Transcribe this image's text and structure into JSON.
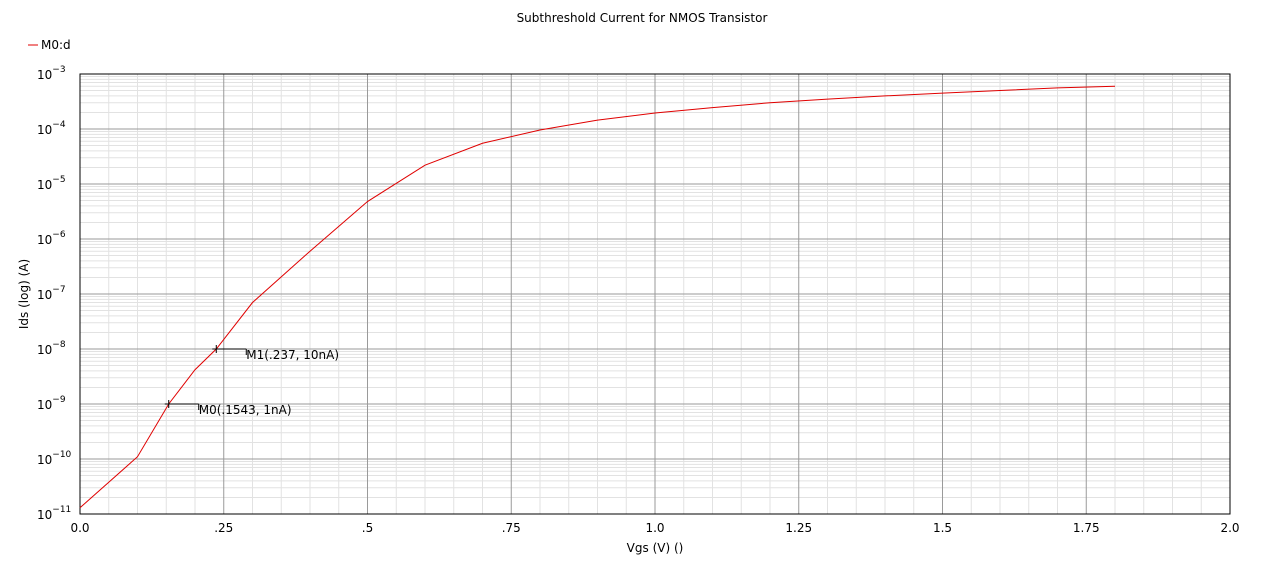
{
  "chart_data": {
    "type": "line",
    "title": "Subthreshold Current for NMOS Transistor",
    "xlabel": "Vgs (V) ()",
    "ylabel": "Ids (log) (A)",
    "xlim": [
      0.0,
      2.0
    ],
    "ylim": [
      1e-11,
      0.001
    ],
    "y_scale": "log",
    "grid": true,
    "legend_placement": "top-left",
    "x_ticks": [
      {
        "value": 0.0,
        "label": "0.0"
      },
      {
        "value": 0.25,
        "label": ".25"
      },
      {
        "value": 0.5,
        "label": ".5"
      },
      {
        "value": 0.75,
        "label": ".75"
      },
      {
        "value": 1.0,
        "label": "1.0"
      },
      {
        "value": 1.25,
        "label": "1.25"
      },
      {
        "value": 1.5,
        "label": "1.5"
      },
      {
        "value": 1.75,
        "label": "1.75"
      },
      {
        "value": 2.0,
        "label": "2.0"
      }
    ],
    "y_ticks": [
      {
        "value": 1e-11,
        "base": "10",
        "exp": "−11"
      },
      {
        "value": 1e-10,
        "base": "10",
        "exp": "−10"
      },
      {
        "value": 1e-09,
        "base": "10",
        "exp": "−9"
      },
      {
        "value": 1e-08,
        "base": "10",
        "exp": "−8"
      },
      {
        "value": 1e-07,
        "base": "10",
        "exp": "−7"
      },
      {
        "value": 1e-06,
        "base": "10",
        "exp": "−6"
      },
      {
        "value": 1e-05,
        "base": "10",
        "exp": "−5"
      },
      {
        "value": 0.0001,
        "base": "10",
        "exp": "−4"
      },
      {
        "value": 0.001,
        "base": "10",
        "exp": "−3"
      }
    ],
    "series": [
      {
        "name": "M0:d",
        "color": "#e00000",
        "x": [
          0.0,
          0.1,
          0.1543,
          0.2,
          0.237,
          0.3,
          0.4,
          0.5,
          0.6,
          0.7,
          0.8,
          0.9,
          1.0,
          1.1,
          1.2,
          1.3,
          1.4,
          1.5,
          1.6,
          1.7,
          1.8
        ],
        "y": [
          1.3e-11,
          1.1e-10,
          1e-09,
          4.2e-09,
          1e-08,
          7e-08,
          6e-07,
          4.8e-06,
          2.2e-05,
          5.5e-05,
          9.6e-05,
          0.000145,
          0.000195,
          0.000245,
          0.0003,
          0.00035,
          0.0004,
          0.00045,
          0.0005,
          0.00056,
          0.0006
        ]
      }
    ],
    "markers": [
      {
        "name": "M0",
        "x": 0.1543,
        "y": 1e-09,
        "label": "M0(.1543, 1nA)"
      },
      {
        "name": "M1",
        "x": 0.237,
        "y": 1e-08,
        "label": "M1(.237, 10nA)"
      }
    ]
  }
}
